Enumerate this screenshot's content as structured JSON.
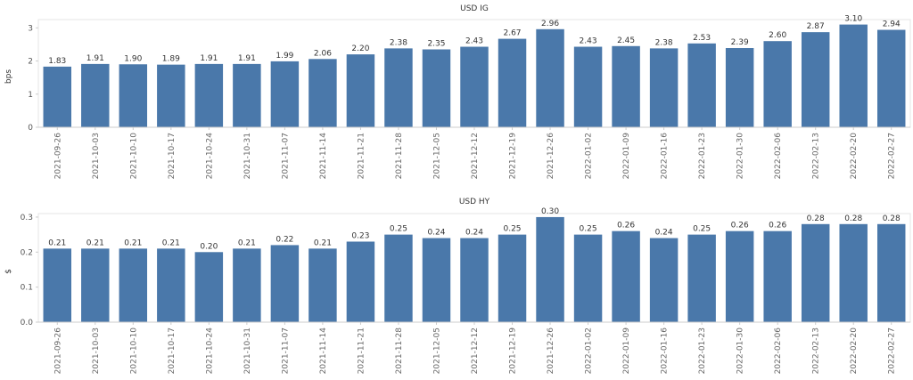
{
  "colors": {
    "bar": "#4a78aa",
    "grid": "#e6e6e6",
    "axis": "#cccccc"
  },
  "chart_data": [
    {
      "type": "bar",
      "title": "USD IG",
      "ylabel": "bps",
      "xlabel": "",
      "ylim": [
        0,
        3.25
      ],
      "yticks": [
        "0",
        "1",
        "2",
        "3"
      ],
      "yticks_values": [
        0,
        1,
        2,
        3
      ],
      "categories": [
        "2021-09-26",
        "2021-10-03",
        "2021-10-10",
        "2021-10-17",
        "2021-10-24",
        "2021-10-31",
        "2021-11-07",
        "2021-11-14",
        "2021-11-21",
        "2021-11-28",
        "2021-12-05",
        "2021-12-12",
        "2021-12-19",
        "2021-12-26",
        "2022-01-02",
        "2022-01-09",
        "2022-01-16",
        "2022-01-23",
        "2022-01-30",
        "2022-02-06",
        "2022-02-13",
        "2022-02-20",
        "2022-02-27"
      ],
      "values": [
        1.83,
        1.91,
        1.9,
        1.89,
        1.91,
        1.91,
        1.99,
        2.06,
        2.2,
        2.38,
        2.35,
        2.43,
        2.67,
        2.96,
        2.43,
        2.45,
        2.38,
        2.53,
        2.39,
        2.6,
        2.87,
        3.1,
        2.94
      ],
      "labels": [
        "1.83",
        "1.91",
        "1.90",
        "1.89",
        "1.91",
        "1.91",
        "1.99",
        "2.06",
        "2.20",
        "2.38",
        "2.35",
        "2.43",
        "2.67",
        "2.96",
        "2.43",
        "2.45",
        "2.38",
        "2.53",
        "2.39",
        "2.60",
        "2.87",
        "3.10",
        "2.94"
      ]
    },
    {
      "type": "bar",
      "title": "USD HY",
      "ylabel": "$",
      "xlabel": "",
      "ylim": [
        0,
        0.31
      ],
      "yticks": [
        "0.0",
        "0.1",
        "0.2",
        "0.3"
      ],
      "yticks_values": [
        0,
        0.1,
        0.2,
        0.3
      ],
      "categories": [
        "2021-09-26",
        "2021-10-03",
        "2021-10-10",
        "2021-10-17",
        "2021-10-24",
        "2021-10-31",
        "2021-11-07",
        "2021-11-14",
        "2021-11-21",
        "2021-11-28",
        "2021-12-05",
        "2021-12-12",
        "2021-12-19",
        "2021-12-26",
        "2022-01-02",
        "2022-01-09",
        "2022-01-16",
        "2022-01-23",
        "2022-01-30",
        "2022-02-06",
        "2022-02-13",
        "2022-02-20",
        "2022-02-27"
      ],
      "values": [
        0.21,
        0.21,
        0.21,
        0.21,
        0.2,
        0.21,
        0.22,
        0.21,
        0.23,
        0.25,
        0.24,
        0.24,
        0.25,
        0.3,
        0.25,
        0.26,
        0.24,
        0.25,
        0.26,
        0.26,
        0.28,
        0.28,
        0.28
      ],
      "labels": [
        "0.21",
        "0.21",
        "0.21",
        "0.21",
        "0.20",
        "0.21",
        "0.22",
        "0.21",
        "0.23",
        "0.25",
        "0.24",
        "0.24",
        "0.25",
        "0.30",
        "0.25",
        "0.26",
        "0.24",
        "0.25",
        "0.26",
        "0.26",
        "0.28",
        "0.28",
        "0.28"
      ]
    }
  ]
}
